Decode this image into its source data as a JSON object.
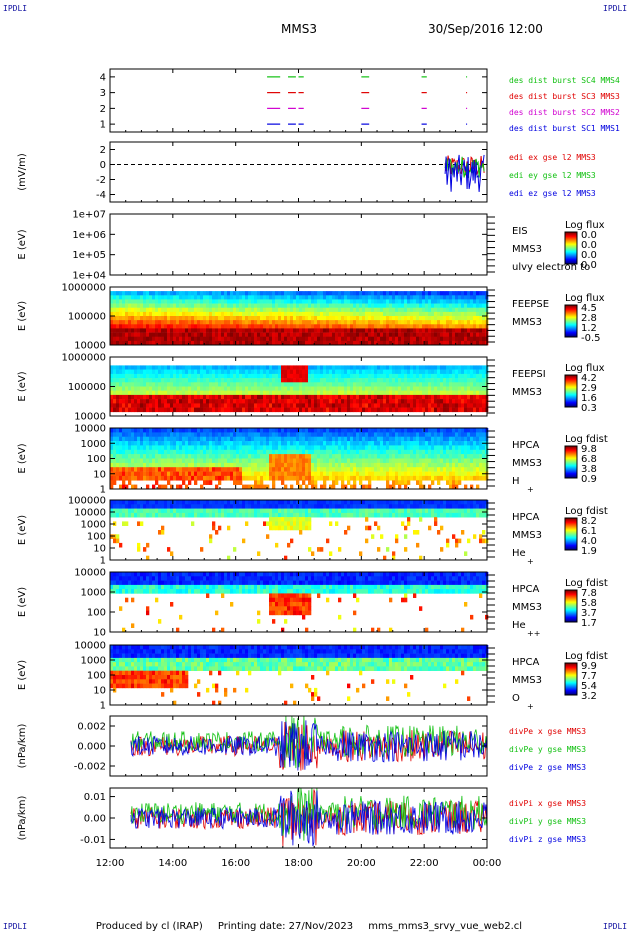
{
  "header": {
    "corner_tl": "IPDLI",
    "corner_tr": "IPDLI",
    "corner_bl": "IPDLI",
    "corner_br": "IPDLI",
    "title": "MMS3",
    "datetime": "30/Sep/2016 12:00"
  },
  "footer": {
    "producer": "Produced by cl (IRAP)",
    "printing_date": "Printing date: 27/Nov/2023",
    "filename": "mms_mms3_srvy_vue_web2.cl"
  },
  "colors": {
    "red": "#e00000",
    "green": "#10c010",
    "blue": "#0000e0",
    "magenta": "#d000d0",
    "dark_blue": "#2020c0"
  },
  "chart_data": [
    {
      "type": "line",
      "panel": "burst-availability",
      "xlim": [
        "12:00",
        "00:00"
      ],
      "yticks": [
        "1",
        "2",
        "3",
        "4"
      ],
      "ylim": [
        0.5,
        4.5
      ],
      "series": [
        {
          "name": "des dist burst SC1 MMS1",
          "color": "#0000e0",
          "y": 1,
          "intervals": [
            [
              "17:00",
              "17:25"
            ],
            [
              "17:40",
              "17:55"
            ],
            [
              "18:00",
              "18:10"
            ],
            [
              "20:00",
              "20:15"
            ],
            [
              "21:55",
              "22:05"
            ],
            [
              "23:20",
              "23:22"
            ]
          ]
        },
        {
          "name": "des dist burst SC2 MMS2",
          "color": "#d000d0",
          "y": 2,
          "intervals": [
            [
              "17:00",
              "17:25"
            ],
            [
              "17:40",
              "17:55"
            ],
            [
              "18:00",
              "18:10"
            ],
            [
              "20:00",
              "20:15"
            ],
            [
              "21:55",
              "22:05"
            ],
            [
              "23:20",
              "23:22"
            ]
          ]
        },
        {
          "name": "des dist burst SC3 MMS3",
          "color": "#e00000",
          "y": 3,
          "intervals": [
            [
              "17:00",
              "17:25"
            ],
            [
              "17:40",
              "17:55"
            ],
            [
              "18:00",
              "18:10"
            ],
            [
              "20:00",
              "20:15"
            ],
            [
              "21:55",
              "22:05"
            ],
            [
              "23:20",
              "23:22"
            ]
          ]
        },
        {
          "name": "des dist burst SC4 MMS4",
          "color": "#10c010",
          "y": 4,
          "intervals": [
            [
              "17:00",
              "17:25"
            ],
            [
              "17:40",
              "17:55"
            ],
            [
              "18:00",
              "18:10"
            ],
            [
              "20:00",
              "20:15"
            ],
            [
              "21:55",
              "22:05"
            ],
            [
              "23:20",
              "23:22"
            ]
          ]
        }
      ]
    },
    {
      "type": "line",
      "panel": "edi-electric-field",
      "ylabel": "(mV/m)",
      "yticks": [
        "-4",
        "-2",
        "0",
        "2"
      ],
      "ylim": [
        -5,
        3
      ],
      "series": [
        {
          "name": "edi ex gse l2 MMS3",
          "color": "#e00000"
        },
        {
          "name": "edi ey gse l2 MMS3",
          "color": "#10c010"
        },
        {
          "name": "edi ez gse l2 MMS3",
          "color": "#0000e0"
        }
      ],
      "data_window": [
        "22:40",
        "23:55"
      ]
    },
    {
      "type": "heatmap",
      "panel": "EIS",
      "ylabel": "E (eV)",
      "yticks": [
        "1e+04",
        "1e+05",
        "1e+06",
        "1e+07"
      ],
      "labels": [
        "EIS",
        "MMS3",
        "ulvy electron to"
      ],
      "colorbar": {
        "title": "Log flux",
        "ticks": [
          "0.0",
          "0.0",
          "0.0",
          "0.0"
        ]
      },
      "empty": true
    },
    {
      "type": "heatmap",
      "panel": "FEEPSE",
      "ylabel": "E (eV)",
      "yticks": [
        "10000",
        "100000",
        "1000000"
      ],
      "labels": [
        "FEEPSE",
        "MMS3"
      ],
      "colorbar": {
        "title": "Log flux",
        "ticks": [
          "4.5",
          "2.8",
          "1.2",
          "-0.5"
        ]
      },
      "data_window": [
        "12:00",
        "00:00"
      ]
    },
    {
      "type": "heatmap",
      "panel": "FEEPSI",
      "ylabel": "E (eV)",
      "yticks": [
        "10000",
        "100000",
        "1000000"
      ],
      "labels": [
        "FEEPSI",
        "MMS3"
      ],
      "colorbar": {
        "title": "Log flux",
        "ticks": [
          "4.2",
          "2.9",
          "1.6",
          "0.3"
        ]
      },
      "data_window": [
        "12:00",
        "00:00"
      ]
    },
    {
      "type": "heatmap",
      "panel": "HPCA-H+",
      "ylabel": "E (eV)",
      "yticks": [
        "1",
        "10",
        "100",
        "1000",
        "10000"
      ],
      "labels": [
        "HPCA",
        "MMS3",
        "H",
        "+"
      ],
      "colorbar": {
        "title": "Log fdist",
        "ticks": [
          "9.8",
          "6.8",
          "3.8",
          "0.9"
        ]
      },
      "data_window": [
        "12:00",
        "00:00"
      ]
    },
    {
      "type": "heatmap",
      "panel": "HPCA-He+",
      "ylabel": "E (eV)",
      "yticks": [
        "1",
        "10",
        "100",
        "1000",
        "10000",
        "100000"
      ],
      "labels": [
        "HPCA",
        "MMS3",
        "He",
        "+"
      ],
      "colorbar": {
        "title": "Log fdist",
        "ticks": [
          "8.2",
          "6.1",
          "4.0",
          "1.9"
        ]
      },
      "data_window": [
        "12:00",
        "00:00"
      ]
    },
    {
      "type": "heatmap",
      "panel": "HPCA-He++",
      "ylabel": "E (eV)",
      "yticks": [
        "10",
        "100",
        "1000",
        "10000"
      ],
      "labels": [
        "HPCA",
        "MMS3",
        "He",
        "++"
      ],
      "colorbar": {
        "title": "Log fdist",
        "ticks": [
          "7.8",
          "5.8",
          "3.7",
          "1.7"
        ]
      },
      "data_window": [
        "12:00",
        "00:00"
      ]
    },
    {
      "type": "heatmap",
      "panel": "HPCA-O+",
      "ylabel": "E (eV)",
      "yticks": [
        "1",
        "10",
        "100",
        "1000",
        "10000"
      ],
      "labels": [
        "HPCA",
        "MMS3",
        "O",
        "+"
      ],
      "colorbar": {
        "title": "Log fdist",
        "ticks": [
          "9.9",
          "7.7",
          "5.4",
          "3.2"
        ]
      },
      "data_window": [
        "12:00",
        "00:00"
      ]
    },
    {
      "type": "line",
      "panel": "divPe",
      "ylabel": "(nPa/km)",
      "yticks": [
        "-0.002",
        "0.000",
        "0.002"
      ],
      "ylim": [
        -0.003,
        0.003
      ],
      "series": [
        {
          "name": "divPe x gse MMS3",
          "color": "#e00000"
        },
        {
          "name": "divPe y gse MMS3",
          "color": "#10c010"
        },
        {
          "name": "divPe z gse MMS3",
          "color": "#0000e0"
        }
      ],
      "data_window": [
        "12:40",
        "00:00"
      ]
    },
    {
      "type": "line",
      "panel": "divPi",
      "ylabel": "(nPa/km)",
      "yticks": [
        "-0.01",
        "0.00",
        "0.01"
      ],
      "ylim": [
        -0.014,
        0.014
      ],
      "series": [
        {
          "name": "divPi x gse MMS3",
          "color": "#e00000"
        },
        {
          "name": "divPi y gse MMS3",
          "color": "#10c010"
        },
        {
          "name": "divPi z gse MMS3",
          "color": "#0000e0"
        }
      ],
      "data_window": [
        "12:40",
        "00:00"
      ]
    }
  ],
  "time_axis": {
    "ticks": [
      "12:00",
      "14:00",
      "16:00",
      "18:00",
      "20:00",
      "22:00",
      "00:00"
    ]
  }
}
